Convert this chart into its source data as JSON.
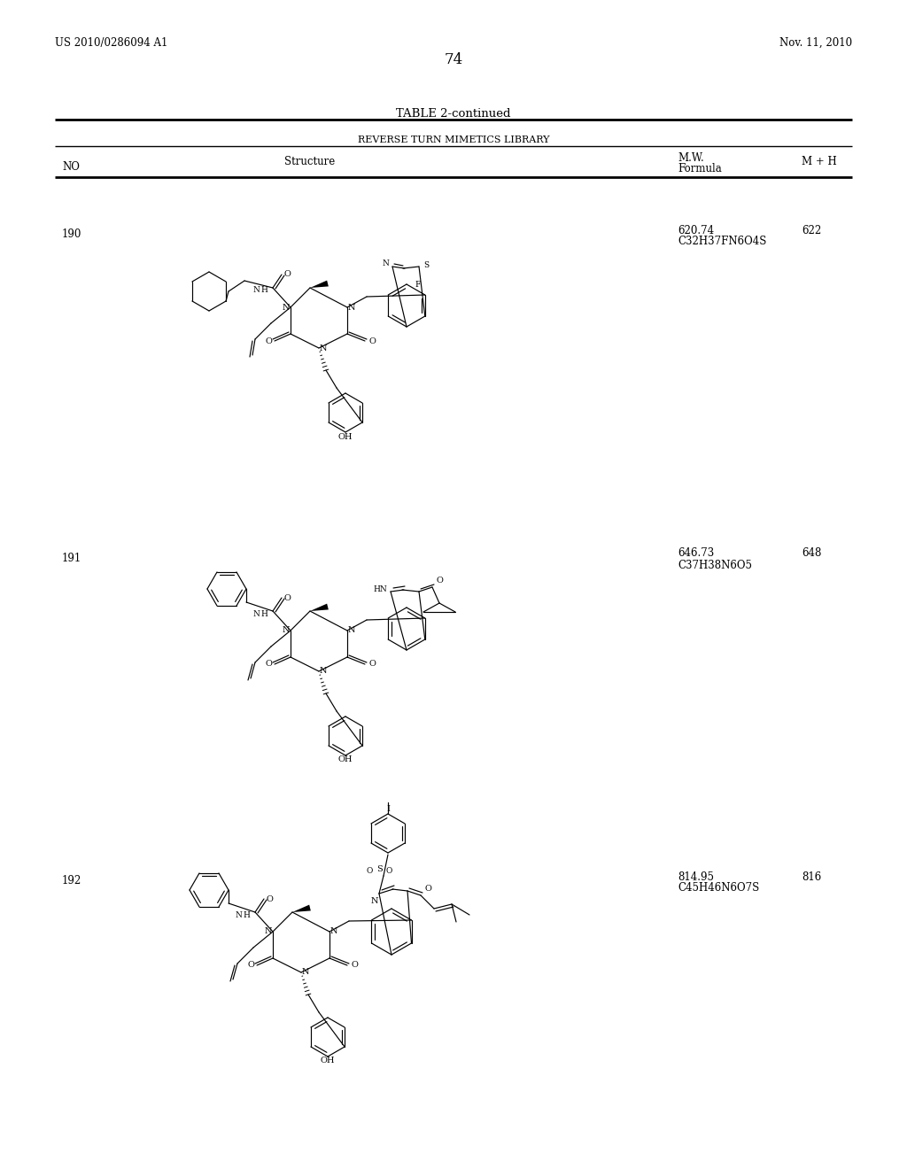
{
  "background_color": "#ffffff",
  "header_left": "US 2010/0286094 A1",
  "header_right": "Nov. 11, 2010",
  "page_number": "74",
  "table_title": "TABLE 2-continued",
  "table_subtitle": "REVERSE TURN MIMETICS LIBRARY",
  "rows": [
    {
      "no": "190",
      "mw": "620.74",
      "formula": "C32H37FN6O4S",
      "mh": "622"
    },
    {
      "no": "191",
      "mw": "646.73",
      "formula": "C37H38N6O5",
      "mh": "648"
    },
    {
      "no": "192",
      "mw": "814.95",
      "formula": "C45H46N6O7S",
      "mh": "816"
    }
  ]
}
